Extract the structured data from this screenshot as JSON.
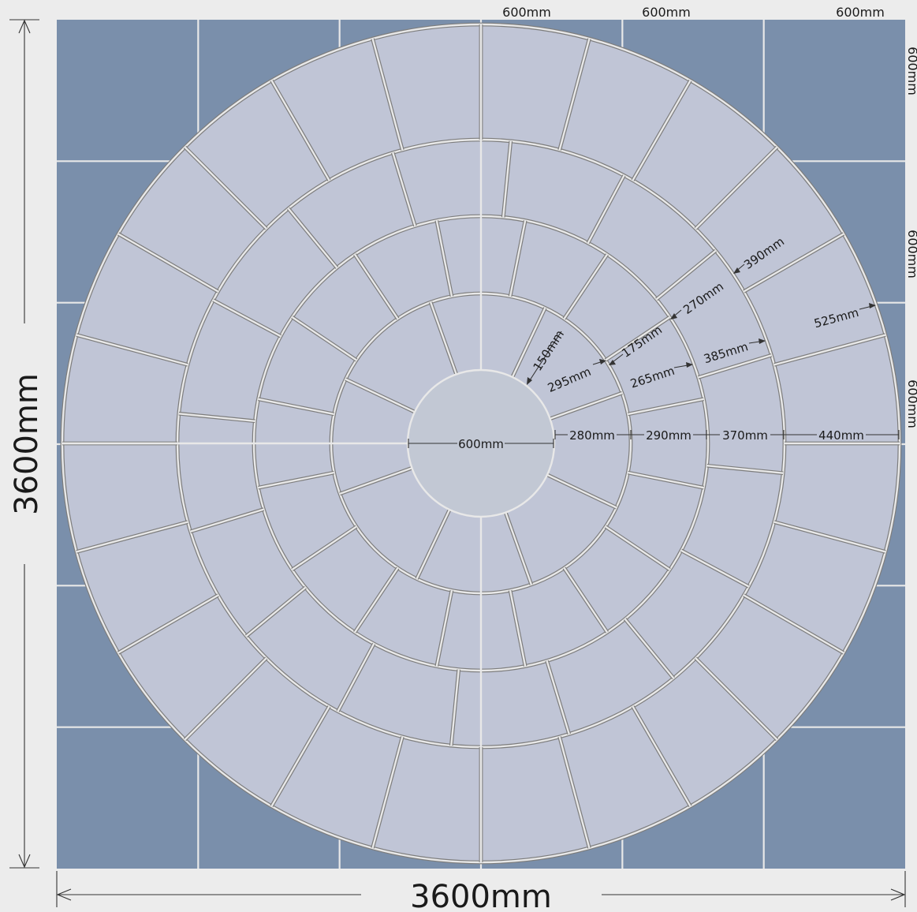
{
  "colors": {
    "background": "#ececec",
    "outer_slab": "#7a8fab",
    "slab_joint": "#e8e8e8",
    "circle_paver": "#c0c5d6",
    "center_stone": "#c2c8d4",
    "paver_outline": "#7d7d7d"
  },
  "overall": {
    "width_label": "3600mm",
    "height_label": "3600mm"
  },
  "outer_slabs": {
    "top_labels": [
      "600mm",
      "600mm",
      "600mm"
    ],
    "right_labels": [
      "600mm",
      "600mm",
      "600mm"
    ]
  },
  "circle": {
    "center_label": "600mm",
    "ring_widths": [
      "280mm",
      "290mm",
      "370mm",
      "440mm"
    ],
    "ring_segments": [
      8,
      16,
      16,
      24
    ],
    "segment_dimensions": {
      "ring1_inner": "150mm",
      "ring1_outer": "295mm",
      "ring2_inner": "175mm",
      "ring2_outer": "265mm",
      "ring3_inner": "270mm",
      "ring3_outer": "385mm",
      "ring4_inner": "390mm",
      "ring4_outer": "525mm"
    }
  }
}
